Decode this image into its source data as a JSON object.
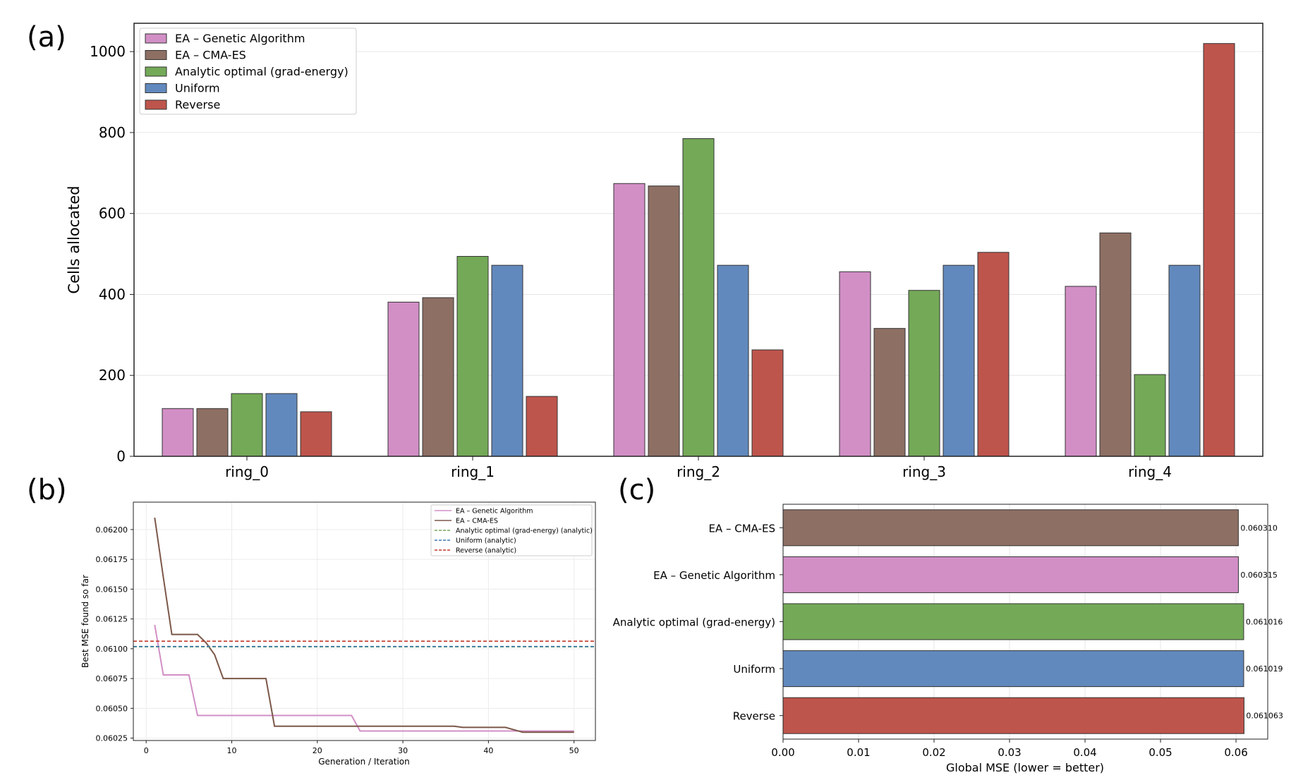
{
  "panels": {
    "a": "(a)",
    "b": "(b)",
    "c": "(c)"
  },
  "colors": {
    "ga": "#d28fc6",
    "cma": "#8e6f64",
    "analytic": "#73a957",
    "uniform": "#6289bd",
    "reverse": "#be554c"
  },
  "chart_data": [
    {
      "id": "a",
      "type": "bar",
      "title": "",
      "xlabel": "",
      "ylabel": "Cells allocated",
      "categories": [
        "ring_0",
        "ring_1",
        "ring_2",
        "ring_3",
        "ring_4"
      ],
      "ylim": [
        0,
        1070
      ],
      "yticks": [
        0,
        200,
        400,
        600,
        800,
        1000
      ],
      "grid": true,
      "legend": "top-left",
      "series": [
        {
          "name": "EA – Genetic Algorithm",
          "color": "#d28fc6",
          "values": [
            118,
            381,
            674,
            456,
            420
          ]
        },
        {
          "name": "EA – CMA-ES",
          "color": "#8e6f64",
          "values": [
            118,
            392,
            668,
            316,
            552
          ]
        },
        {
          "name": "Analytic optimal (grad-energy)",
          "color": "#73a957",
          "values": [
            155,
            494,
            785,
            410,
            202
          ]
        },
        {
          "name": "Uniform",
          "color": "#6289bd",
          "values": [
            155,
            472,
            472,
            472,
            472
          ]
        },
        {
          "name": "Reverse",
          "color": "#be554c",
          "values": [
            110,
            148,
            263,
            504,
            1020
          ]
        }
      ]
    },
    {
      "id": "b",
      "type": "line",
      "title": "",
      "xlabel": "Generation / Iteration",
      "ylabel": "Best MSE found so far",
      "xlim": [
        -1.5,
        52.5
      ],
      "ylim": [
        0.06023,
        0.06223
      ],
      "xticks": [
        0,
        10,
        20,
        30,
        40,
        50
      ],
      "yticks": [
        0.06025,
        0.0605,
        0.06075,
        0.061,
        0.06125,
        0.0615,
        0.06175,
        0.062
      ],
      "yticklabels": [
        "0.06025",
        "0.06050",
        "0.06075",
        "0.06100",
        "0.06125",
        "0.06150",
        "0.06175",
        "0.06200"
      ],
      "grid": true,
      "legend": "top-right",
      "series": [
        {
          "name": "EA – Genetic Algorithm",
          "color": "#d28fc6",
          "style": "solid",
          "points": [
            [
              1,
              0.0612
            ],
            [
              2,
              0.06078
            ],
            [
              5,
              0.06078
            ],
            [
              6,
              0.06044
            ],
            [
              24,
              0.06044
            ],
            [
              25,
              0.06031
            ],
            [
              50,
              0.06031
            ]
          ]
        },
        {
          "name": "EA – CMA-ES",
          "color": "#7b5748",
          "style": "solid",
          "points": [
            [
              1,
              0.0621
            ],
            [
              2,
              0.0616
            ],
            [
              3,
              0.06112
            ],
            [
              6,
              0.06112
            ],
            [
              7,
              0.06105
            ],
            [
              8,
              0.06095
            ],
            [
              9,
              0.06075
            ],
            [
              14,
              0.06075
            ],
            [
              15,
              0.06035
            ],
            [
              36,
              0.06035
            ],
            [
              37,
              0.06034
            ],
            [
              42,
              0.06034
            ],
            [
              43,
              0.06032
            ],
            [
              44,
              0.0603
            ],
            [
              50,
              0.0603
            ]
          ]
        },
        {
          "name": "Analytic optimal (grad-energy) (analytic)",
          "color": "#73a957",
          "style": "dashed",
          "hline": 0.061016
        },
        {
          "name": "Uniform (analytic)",
          "color": "#3b78b0",
          "style": "dashed",
          "hline": 0.061019
        },
        {
          "name": "Reverse (analytic)",
          "color": "#c0392b",
          "style": "dashed",
          "hline": 0.061063
        }
      ]
    },
    {
      "id": "c",
      "type": "bar",
      "orientation": "horizontal",
      "title": "",
      "xlabel": "Global MSE (lower = better)",
      "ylabel": "",
      "categories": [
        "EA – CMA-ES",
        "EA – Genetic Algorithm",
        "Analytic optimal (grad-energy)",
        "Uniform",
        "Reverse"
      ],
      "values": [
        0.06031,
        0.060315,
        0.061016,
        0.061019,
        0.061063
      ],
      "value_labels": [
        "0.060310",
        "0.060315",
        "0.061016",
        "0.061019",
        "0.061063"
      ],
      "colors": [
        "#8e6f64",
        "#d28fc6",
        "#73a957",
        "#6289bd",
        "#be554c"
      ],
      "xlim": [
        0,
        0.0642
      ],
      "xticks": [
        0,
        0.01,
        0.02,
        0.03,
        0.04,
        0.05,
        0.06
      ],
      "xticklabels": [
        "0.00",
        "0.01",
        "0.02",
        "0.03",
        "0.04",
        "0.05",
        "0.06"
      ],
      "grid": true
    }
  ]
}
